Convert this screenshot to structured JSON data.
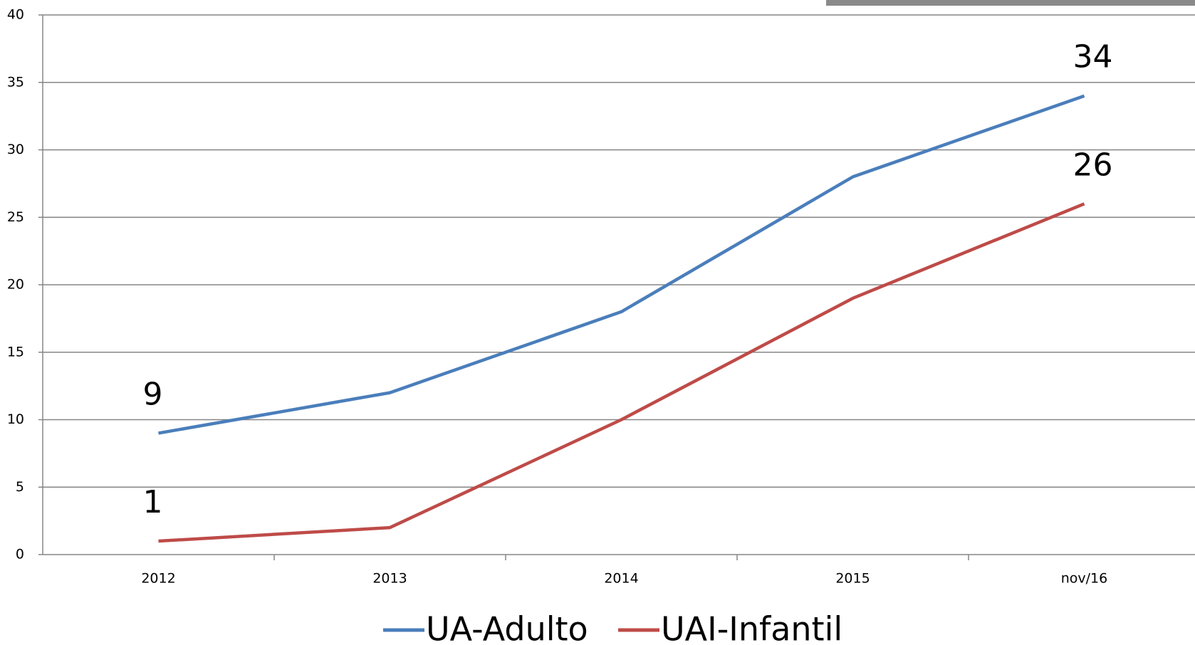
{
  "chart_data": {
    "type": "line",
    "categories": [
      "2012",
      "2013",
      "2014",
      "2015",
      "nov/16"
    ],
    "series": [
      {
        "name": "UA-Adulto",
        "color": "#4a7ebb",
        "values": [
          9,
          12,
          18,
          28,
          34
        ]
      },
      {
        "name": "UAI-Infantil",
        "color": "#be4b48",
        "values": [
          1,
          2,
          10,
          19,
          26
        ]
      }
    ],
    "ylim": [
      0,
      40
    ],
    "yticks": [
      0,
      5,
      10,
      15,
      20,
      25,
      30,
      35,
      40
    ],
    "grid": true,
    "legend": "bottom"
  }
}
